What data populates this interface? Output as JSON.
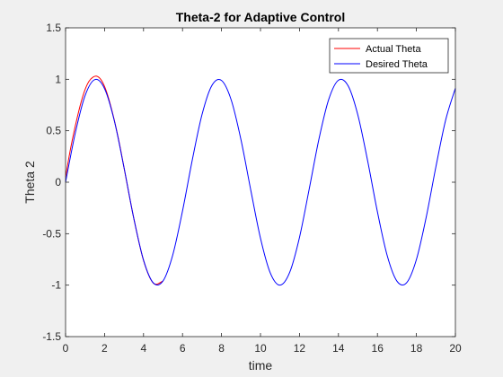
{
  "chart_data": {
    "type": "line",
    "title": "Theta-2 for Adaptive Control",
    "xlabel": "time",
    "ylabel": "Theta 2",
    "xlim": [
      0,
      20
    ],
    "ylim": [
      -1.5,
      1.5
    ],
    "xticks": [
      0,
      2,
      4,
      6,
      8,
      10,
      12,
      14,
      16,
      18,
      20
    ],
    "yticks": [
      -1.5,
      -1,
      -0.5,
      0,
      0.5,
      1,
      1.5
    ],
    "ytick_labels": [
      "-1.5",
      "-1",
      "-0.5",
      "0",
      "0.5",
      "1",
      "1.5"
    ],
    "grid": false,
    "legend": "top-right",
    "series": [
      {
        "name": "Actual Theta",
        "color": "#ff0000",
        "x": [
          0,
          0.2,
          0.4,
          0.6,
          0.8,
          1.0,
          1.2,
          1.4,
          1.6,
          1.8,
          2.0,
          2.2,
          2.4,
          2.6,
          2.8,
          3.0,
          3.5,
          4.0,
          4.5,
          5.0
        ],
        "y": [
          0.05,
          0.27,
          0.46,
          0.63,
          0.78,
          0.9,
          0.98,
          1.02,
          1.03,
          1.0,
          0.93,
          0.82,
          0.68,
          0.52,
          0.34,
          0.14,
          -0.35,
          -0.76,
          -0.98,
          -0.96
        ]
      },
      {
        "name": "Desired Theta",
        "color": "#0000ff",
        "x": [
          0,
          0.5,
          1,
          1.5,
          2,
          2.5,
          3,
          3.5,
          4,
          4.5,
          5,
          5.5,
          6,
          6.5,
          7,
          7.5,
          8,
          8.5,
          9,
          9.5,
          10,
          10.5,
          11,
          11.5,
          12,
          12.5,
          13,
          13.5,
          14,
          14.5,
          15,
          15.5,
          16,
          16.5,
          17,
          17.5,
          18,
          18.5,
          19,
          19.5,
          20
        ],
        "y": [
          0,
          0.479,
          0.841,
          0.997,
          0.909,
          0.598,
          0.141,
          -0.351,
          -0.757,
          -0.978,
          -0.959,
          -0.706,
          -0.279,
          0.215,
          0.657,
          0.938,
          0.989,
          0.798,
          0.412,
          -0.075,
          -0.544,
          -0.88,
          -1.0,
          -0.875,
          -0.537,
          -0.066,
          0.42,
          0.804,
          0.991,
          0.935,
          0.65,
          0.206,
          -0.288,
          -0.712,
          -0.961,
          -0.976,
          -0.751,
          -0.342,
          0.15,
          0.604,
          0.913
        ]
      }
    ]
  }
}
